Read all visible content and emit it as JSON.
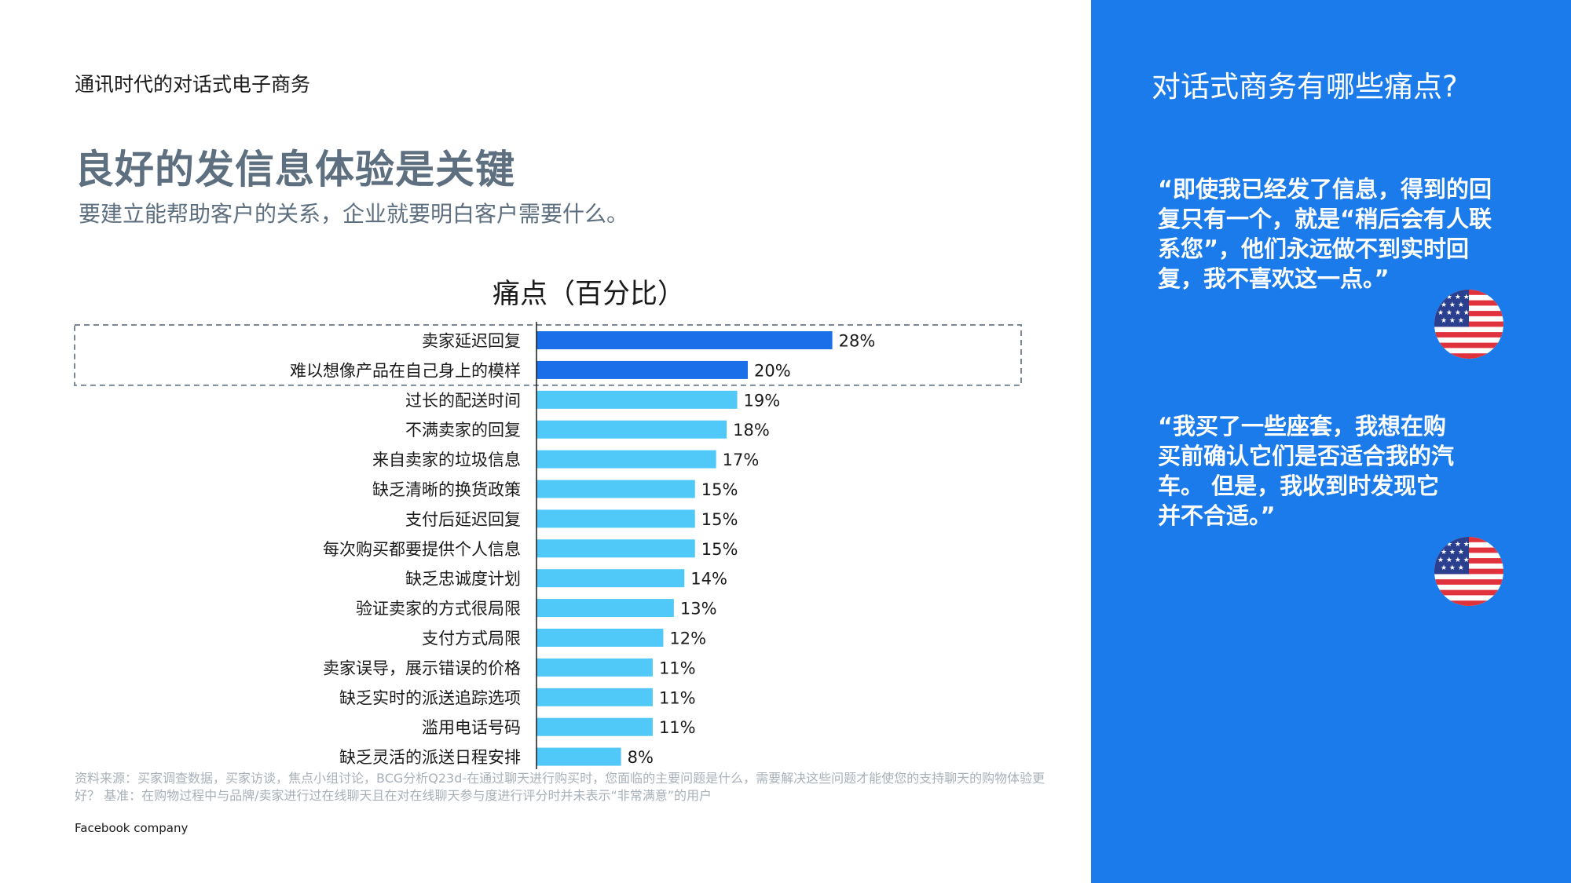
{
  "header": {
    "section_title": "通讯时代的对话式电子商务",
    "headline": "良好的发信息体验是关键",
    "subheadline": "要建立能帮助客户的关系，企业就要明白客户需要什么。"
  },
  "chart_data": {
    "type": "bar",
    "orientation": "horizontal",
    "title": "痛点（百分比）",
    "categories": [
      "卖家延迟回复",
      "难以想像产品在自己身上的模样",
      "过长的配送时间",
      "不满卖家的回复",
      "来自卖家的垃圾信息",
      "缺乏清晰的换货政策",
      "支付后延迟回复",
      "每次购买都要提供个人信息",
      "缺乏忠诚度计划",
      "验证卖家的方式很局限",
      "支付方式局限",
      "卖家误导，展示错误的价格",
      "缺乏实时的派送追踪选项",
      "滥用电话号码",
      "缺乏灵活的派送日程安排"
    ],
    "values": [
      28,
      20,
      19,
      18,
      17,
      15,
      15,
      15,
      14,
      13,
      12,
      11,
      11,
      11,
      8
    ],
    "value_labels": [
      "28%",
      "20%",
      "19%",
      "18%",
      "17%",
      "15%",
      "15%",
      "15%",
      "14%",
      "13%",
      "12%",
      "11%",
      "11%",
      "11%",
      "8%"
    ],
    "highlighted": [
      0,
      1
    ],
    "colors": {
      "highlight": "#1b6fe8",
      "normal": "#50c8f8"
    },
    "xlim": [
      0,
      30
    ]
  },
  "footer": {
    "source": "资料来源：买家调查数据，买家访谈，焦点小组讨论，BCG分析Q23d-在通过聊天进行购买时，您面临的主要问题是什么，需要解决这些问题才能使您的支持聊天的购物体验更好？ 基准：在购物过程中与品牌/卖家进行过在线聊天且在对在线聊天参与度进行评分时并未表示“非常满意”的用户",
    "company": "Facebook company"
  },
  "sidebar": {
    "title": "对话式商务有哪些痛点?",
    "quotes": [
      {
        "text": "“即使我已经发了信息，得到的回复只有一个，就是“稍后会有人联系您”，他们永远做不到实时回复，我不喜欢这一点。”",
        "flag": "us-flag-icon"
      },
      {
        "text": "“我买了一些座套，我想在购买前确认它们是否适合我的汽车。 但是，我收到时发现它并不合适。”",
        "flag": "us-flag-icon"
      }
    ],
    "background": "#1b7bea"
  }
}
